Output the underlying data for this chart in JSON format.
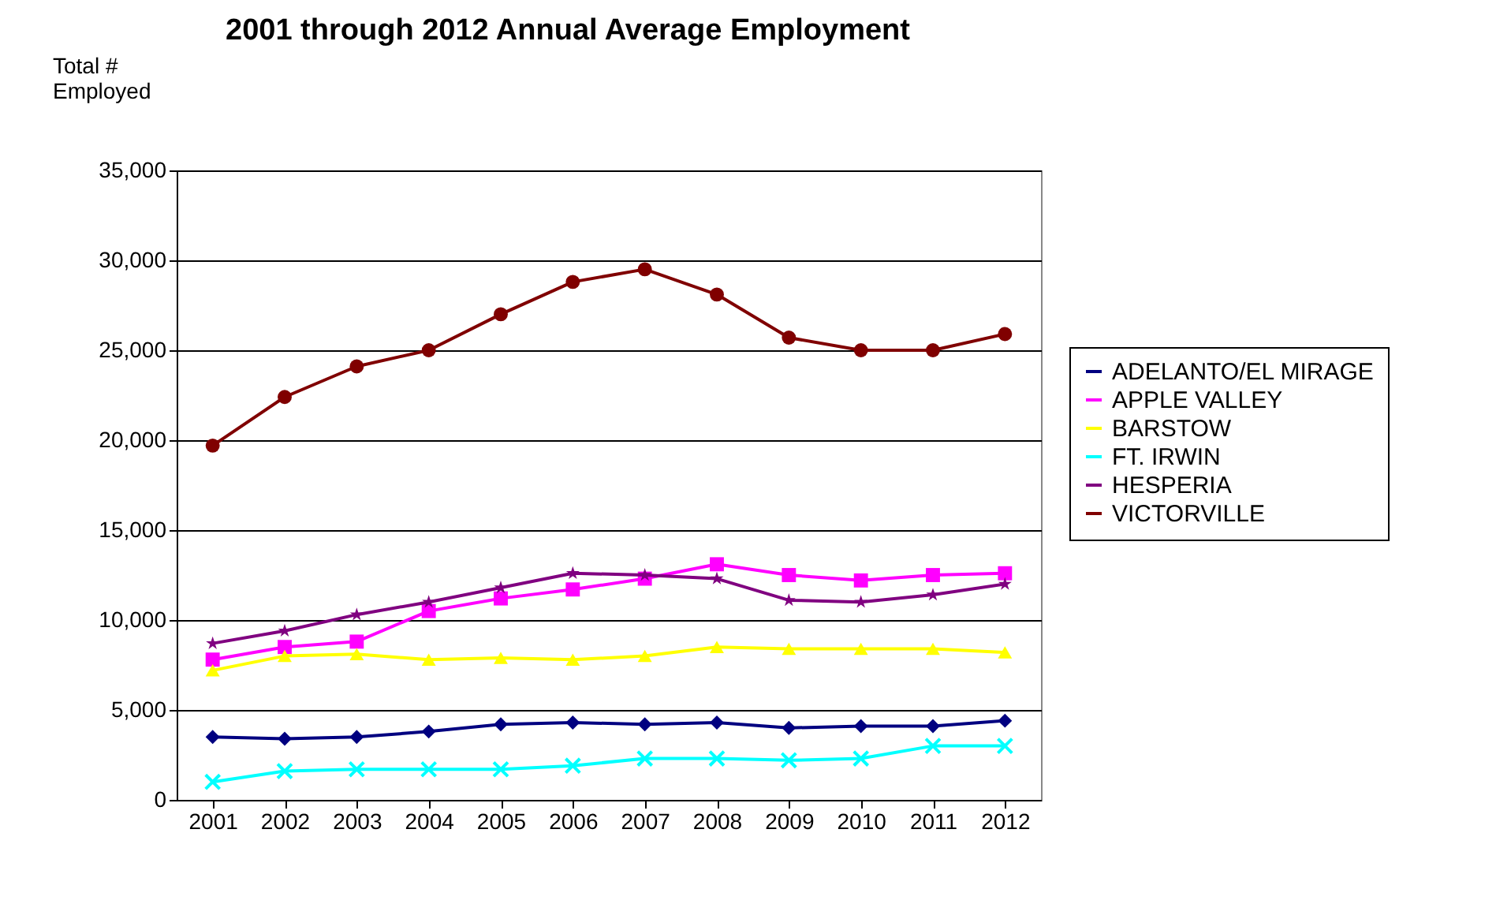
{
  "chart_data": {
    "type": "line",
    "title": "2001 through 2012 Annual Average Employment",
    "ylabel": "Total #\nEmployed",
    "categories": [
      "2001",
      "2002",
      "2003",
      "2004",
      "2005",
      "2006",
      "2007",
      "2008",
      "2009",
      "2010",
      "2011",
      "2012"
    ],
    "ylim": [
      0,
      35000
    ],
    "yticks": [
      0,
      {
        "value": 5000,
        "label": "5,000"
      },
      {
        "value": 10000,
        "label": "10,000"
      },
      {
        "value": 15000,
        "label": "15,000"
      },
      {
        "value": 20000,
        "label": "20,000"
      },
      {
        "value": 25000,
        "label": "25,000"
      },
      {
        "value": 30000,
        "label": "30,000"
      },
      {
        "value": 35000,
        "label": "35,000"
      }
    ],
    "grid": "y",
    "legend": "right",
    "line_style": "solid",
    "series": [
      {
        "name": "ADELANTO/EL MIRAGE",
        "color": "#000080",
        "marker": "diamond",
        "values": [
          3500,
          3400,
          3500,
          3800,
          4200,
          4300,
          4200,
          4300,
          4000,
          4100,
          4100,
          4400
        ]
      },
      {
        "name": "APPLE VALLEY",
        "color": "#ff00ff",
        "marker": "square",
        "values": [
          7800,
          8500,
          8800,
          10500,
          11200,
          11700,
          12300,
          13100,
          12500,
          12200,
          12500,
          12600
        ]
      },
      {
        "name": "BARSTOW",
        "color": "#ffff00",
        "marker": "triangle",
        "values": [
          7200,
          8000,
          8100,
          7800,
          7900,
          7800,
          8000,
          8500,
          8400,
          8400,
          8400,
          8200
        ]
      },
      {
        "name": "FT. IRWIN",
        "color": "#00ffff",
        "marker": "cross",
        "values": [
          1000,
          1600,
          1700,
          1700,
          1700,
          1900,
          2300,
          2300,
          2200,
          2300,
          3000,
          3000
        ]
      },
      {
        "name": "HESPERIA",
        "color": "#800080",
        "marker": "star",
        "values": [
          8700,
          9400,
          10300,
          11000,
          11800,
          12600,
          12500,
          12300,
          11100,
          11000,
          11400,
          12000
        ]
      },
      {
        "name": " VICTORVILLE",
        "color": "#800000",
        "marker": "circle",
        "values": [
          19700,
          22400,
          24100,
          25000,
          27000,
          28800,
          29500,
          28100,
          25700,
          25000,
          25000,
          25900
        ]
      }
    ]
  }
}
